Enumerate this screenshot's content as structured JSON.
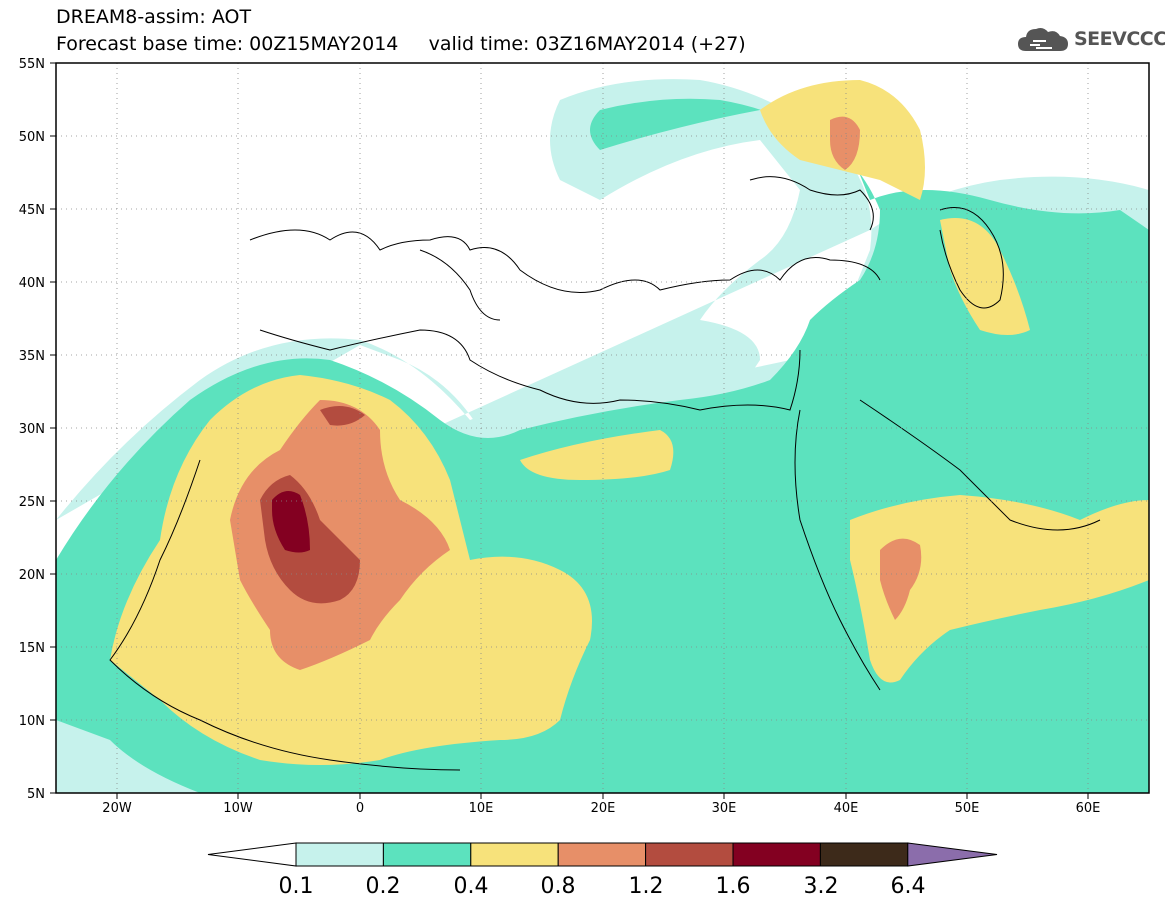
{
  "header": {
    "title_line1": "DREAM8-assim: AOT",
    "title_line2": "Forecast base time: 00Z15MAY2014     valid time: 03Z16MAY2014 (+27)",
    "logo_text": "SEEVCCC",
    "logo_icon": "cloud-icon"
  },
  "map": {
    "lat_labels": [
      "55N",
      "50N",
      "45N",
      "40N",
      "35N",
      "30N",
      "25N",
      "20N",
      "15N",
      "10N",
      "5N"
    ],
    "lon_labels": [
      "20W",
      "10W",
      "0",
      "10E",
      "20E",
      "30E",
      "40E",
      "50E",
      "60E"
    ],
    "extent": {
      "lon": [
        -25,
        65
      ],
      "lat": [
        5,
        55
      ]
    },
    "variable": "AOT"
  },
  "colorbar": {
    "labels": [
      "0.1",
      "0.2",
      "0.4",
      "0.8",
      "1.2",
      "1.6",
      "3.2",
      "6.4"
    ],
    "colors": [
      "#ffffff",
      "#c6f2ec",
      "#5ce2be",
      "#f7e27b",
      "#e78f68",
      "#b34c3f",
      "#830021",
      "#3d2a1a",
      "#8b6dab"
    ]
  }
}
